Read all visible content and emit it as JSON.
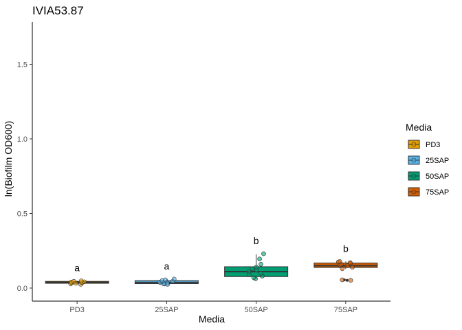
{
  "chart_data": {
    "type": "box",
    "title": "IVIA53.87",
    "xlabel": "Media",
    "ylabel": "ln(Biofilm OD600)",
    "categories": [
      "PD3",
      "25SAP",
      "50SAP",
      "75SAP"
    ],
    "ylim": [
      -0.05,
      1.78
    ],
    "yticks": [
      0.0,
      0.5,
      1.0,
      1.5
    ],
    "ytick_labels": [
      "0.0",
      "0.5",
      "1.0",
      "1.5"
    ],
    "grid": false,
    "legend": {
      "title": "Media",
      "position": "right"
    },
    "series": [
      {
        "name": "PD3",
        "color": "#E69F00",
        "box": {
          "min": 0.025,
          "q1": 0.032,
          "median": 0.038,
          "q3": 0.045,
          "max": 0.048
        },
        "points": [
          0.025,
          0.028,
          0.032,
          0.035,
          0.036,
          0.038,
          0.04,
          0.042,
          0.045,
          0.048
        ],
        "significance": "a"
      },
      {
        "name": "25SAP",
        "color": "#56B4E9",
        "box": {
          "min": 0.025,
          "q1": 0.03,
          "median": 0.038,
          "q3": 0.05,
          "max": 0.06
        },
        "points": [
          0.025,
          0.028,
          0.03,
          0.033,
          0.036,
          0.04,
          0.045,
          0.05,
          0.055,
          0.06
        ],
        "significance": "a"
      },
      {
        "name": "50SAP",
        "color": "#009E73",
        "box": {
          "min": 0.062,
          "q1": 0.077,
          "median": 0.11,
          "q3": 0.143,
          "max": 0.225
        },
        "points": [
          0.062,
          0.07,
          0.08,
          0.09,
          0.1,
          0.11,
          0.12,
          0.13,
          0.14,
          0.16,
          0.195,
          0.23
        ],
        "significance": "b"
      },
      {
        "name": "75SAP",
        "color": "#D55E00",
        "box": {
          "min": 0.128,
          "q1": 0.138,
          "median": 0.15,
          "q3": 0.168,
          "max": 0.178
        },
        "outliers": [
          0.055,
          0.052
        ],
        "points": [
          0.13,
          0.14,
          0.15,
          0.155,
          0.16,
          0.165,
          0.17,
          0.175,
          0.178,
          0.055,
          0.052
        ],
        "significance": "b"
      }
    ]
  }
}
